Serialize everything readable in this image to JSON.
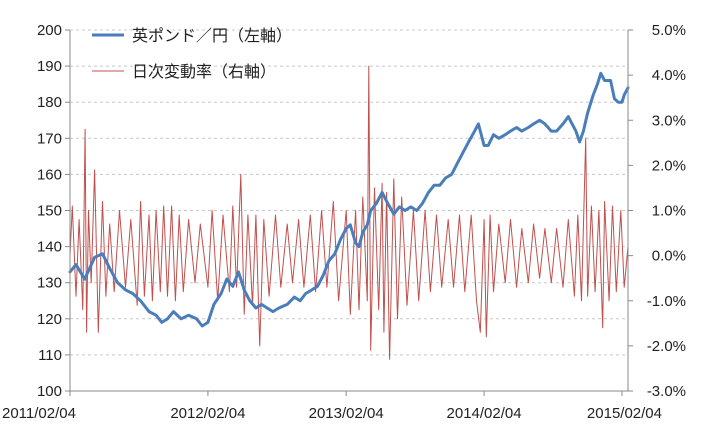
{
  "chart_data": {
    "type": "line",
    "title": "",
    "xlabel": "",
    "ylabel": "",
    "x_tick_labels": [
      "2011/02/04",
      "2012/02/04",
      "2013/02/04",
      "2014/02/04",
      "2015/02/04"
    ],
    "x_range": [
      "2011/02/04",
      "2015/02/20"
    ],
    "y_left": {
      "ylim": [
        100,
        200
      ],
      "tick_labels": [
        "100",
        "110",
        "120",
        "130",
        "140",
        "150",
        "160",
        "170",
        "180",
        "190",
        "200"
      ]
    },
    "y_right": {
      "ylim": [
        -3.0,
        5.0
      ],
      "unit": "%",
      "tick_labels": [
        "-3.0%",
        "-2.0%",
        "-1.0%",
        "0.0%",
        "1.0%",
        "2.0%",
        "3.0%",
        "4.0%",
        "5.0%"
      ]
    },
    "grid": true,
    "legend_position": "top-left",
    "series": [
      {
        "name": "英ポンド／円（左軸）",
        "axis": "left",
        "color": "#4a7ebb",
        "style": "line-thick",
        "points": [
          [
            "2011/02/04",
            133
          ],
          [
            "2011/02/20",
            135
          ],
          [
            "2011/03/15",
            131
          ],
          [
            "2011/04/10",
            137
          ],
          [
            "2011/05/01",
            138
          ],
          [
            "2011/05/20",
            134
          ],
          [
            "2011/06/10",
            130
          ],
          [
            "2011/07/01",
            128
          ],
          [
            "2011/07/20",
            127
          ],
          [
            "2011/08/10",
            125
          ],
          [
            "2011/09/01",
            122
          ],
          [
            "2011/09/20",
            121
          ],
          [
            "2011/10/05",
            119
          ],
          [
            "2011/10/20",
            120
          ],
          [
            "2011/11/05",
            122
          ],
          [
            "2011/11/25",
            120
          ],
          [
            "2011/12/15",
            121
          ],
          [
            "2012/01/05",
            120
          ],
          [
            "2012/01/20",
            118
          ],
          [
            "2012/02/04",
            119
          ],
          [
            "2012/02/20",
            124
          ],
          [
            "2012/03/10",
            127
          ],
          [
            "2012/03/25",
            131
          ],
          [
            "2012/04/10",
            129
          ],
          [
            "2012/04/25",
            133
          ],
          [
            "2012/05/10",
            128
          ],
          [
            "2012/05/25",
            125
          ],
          [
            "2012/06/10",
            123
          ],
          [
            "2012/06/25",
            124
          ],
          [
            "2012/07/10",
            123
          ],
          [
            "2012/07/25",
            122
          ],
          [
            "2012/08/10",
            123
          ],
          [
            "2012/09/01",
            124
          ],
          [
            "2012/09/20",
            126
          ],
          [
            "2012/10/05",
            125
          ],
          [
            "2012/10/20",
            127
          ],
          [
            "2012/11/05",
            128
          ],
          [
            "2012/11/20",
            129
          ],
          [
            "2012/12/05",
            132
          ],
          [
            "2012/12/20",
            136
          ],
          [
            "2013/01/05",
            138
          ],
          [
            "2013/01/20",
            142
          ],
          [
            "2013/02/04",
            145
          ],
          [
            "2013/02/15",
            146
          ],
          [
            "2013/03/01",
            141
          ],
          [
            "2013/03/10",
            140
          ],
          [
            "2013/03/20",
            144
          ],
          [
            "2013/04/01",
            146
          ],
          [
            "2013/04/10",
            150
          ],
          [
            "2013/04/25",
            152
          ],
          [
            "2013/05/10",
            155
          ],
          [
            "2013/05/25",
            152
          ],
          [
            "2013/06/10",
            149
          ],
          [
            "2013/06/25",
            151
          ],
          [
            "2013/07/10",
            150
          ],
          [
            "2013/07/25",
            151
          ],
          [
            "2013/08/10",
            150
          ],
          [
            "2013/08/25",
            152
          ],
          [
            "2013/09/10",
            155
          ],
          [
            "2013/09/25",
            157
          ],
          [
            "2013/10/10",
            157
          ],
          [
            "2013/10/25",
            159
          ],
          [
            "2013/11/10",
            160
          ],
          [
            "2013/11/25",
            163
          ],
          [
            "2013/12/10",
            166
          ],
          [
            "2013/12/25",
            169
          ],
          [
            "2014/01/10",
            172
          ],
          [
            "2014/01/20",
            174
          ],
          [
            "2014/02/04",
            168
          ],
          [
            "2014/02/15",
            168
          ],
          [
            "2014/03/01",
            171
          ],
          [
            "2014/03/15",
            170
          ],
          [
            "2014/04/01",
            171
          ],
          [
            "2014/04/15",
            172
          ],
          [
            "2014/05/01",
            173
          ],
          [
            "2014/05/15",
            172
          ],
          [
            "2014/06/01",
            173
          ],
          [
            "2014/06/15",
            174
          ],
          [
            "2014/07/01",
            175
          ],
          [
            "2014/07/15",
            174
          ],
          [
            "2014/08/01",
            172
          ],
          [
            "2014/08/15",
            172
          ],
          [
            "2014/09/01",
            174
          ],
          [
            "2014/09/15",
            176
          ],
          [
            "2014/09/25",
            174
          ],
          [
            "2014/10/05",
            172
          ],
          [
            "2014/10/15",
            169
          ],
          [
            "2014/10/25",
            172
          ],
          [
            "2014/11/05",
            177
          ],
          [
            "2014/11/20",
            182
          ],
          [
            "2014/12/01",
            185
          ],
          [
            "2014/12/10",
            188
          ],
          [
            "2014/12/20",
            186
          ],
          [
            "2015/01/05",
            186
          ],
          [
            "2015/01/15",
            181
          ],
          [
            "2015/01/25",
            180
          ],
          [
            "2015/02/04",
            180
          ],
          [
            "2015/02/10",
            182
          ],
          [
            "2015/02/20",
            184
          ]
        ]
      },
      {
        "name": "日次変動率（右軸）",
        "axis": "right",
        "color": "#c0504d",
        "style": "line-thin",
        "points": [
          [
            "2011/02/04",
            0.0
          ],
          [
            "2011/02/10",
            1.1
          ],
          [
            "2011/02/20",
            -0.9
          ],
          [
            "2011/02/28",
            0.8
          ],
          [
            "2011/03/10",
            -1.2
          ],
          [
            "2011/03/16",
            2.8
          ],
          [
            "2011/03/20",
            -1.7
          ],
          [
            "2011/03/25",
            1.0
          ],
          [
            "2011/04/01",
            -0.6
          ],
          [
            "2011/04/10",
            1.9
          ],
          [
            "2011/04/20",
            -1.7
          ],
          [
            "2011/05/01",
            1.2
          ],
          [
            "2011/05/10",
            -0.9
          ],
          [
            "2011/05/20",
            0.7
          ],
          [
            "2011/06/01",
            -0.8
          ],
          [
            "2011/06/15",
            1.0
          ],
          [
            "2011/07/01",
            -0.7
          ],
          [
            "2011/07/15",
            0.8
          ],
          [
            "2011/08/01",
            -1.1
          ],
          [
            "2011/08/10",
            1.2
          ],
          [
            "2011/08/20",
            -0.9
          ],
          [
            "2011/09/01",
            0.9
          ],
          [
            "2011/09/10",
            -1.0
          ],
          [
            "2011/09/20",
            1.0
          ],
          [
            "2011/10/01",
            -0.8
          ],
          [
            "2011/10/10",
            1.1
          ],
          [
            "2011/10/20",
            -0.9
          ],
          [
            "2011/10/31",
            1.1
          ],
          [
            "2011/11/10",
            -1.0
          ],
          [
            "2011/11/20",
            0.9
          ],
          [
            "2011/12/01",
            -0.8
          ],
          [
            "2011/12/15",
            0.8
          ],
          [
            "2012/01/01",
            -0.6
          ],
          [
            "2012/01/15",
            0.7
          ],
          [
            "2012/02/04",
            -0.7
          ],
          [
            "2012/02/15",
            1.0
          ],
          [
            "2012/03/01",
            -1.0
          ],
          [
            "2012/03/15",
            0.9
          ],
          [
            "2012/04/01",
            -0.8
          ],
          [
            "2012/04/10",
            1.1
          ],
          [
            "2012/04/20",
            -0.7
          ],
          [
            "2012/05/01",
            1.8
          ],
          [
            "2012/05/10",
            -1.3
          ],
          [
            "2012/05/20",
            0.9
          ],
          [
            "2012/06/01",
            -1.1
          ],
          [
            "2012/06/10",
            0.9
          ],
          [
            "2012/06/20",
            -2.0
          ],
          [
            "2012/07/01",
            0.8
          ],
          [
            "2012/07/15",
            -0.9
          ],
          [
            "2012/08/01",
            0.9
          ],
          [
            "2012/08/15",
            -0.7
          ],
          [
            "2012/09/01",
            0.7
          ],
          [
            "2012/09/15",
            -0.6
          ],
          [
            "2012/10/01",
            0.8
          ],
          [
            "2012/10/15",
            -0.7
          ],
          [
            "2012/11/01",
            0.9
          ],
          [
            "2012/11/15",
            -0.8
          ],
          [
            "2012/12/01",
            1.0
          ],
          [
            "2012/12/15",
            -0.7
          ],
          [
            "2013/01/01",
            1.2
          ],
          [
            "2013/01/15",
            -1.0
          ],
          [
            "2013/02/04",
            1.0
          ],
          [
            "2013/02/15",
            -1.3
          ],
          [
            "2013/03/01",
            1.0
          ],
          [
            "2013/03/10",
            -1.2
          ],
          [
            "2013/03/20",
            1.3
          ],
          [
            "2013/04/01",
            -1.0
          ],
          [
            "2013/04/05",
            4.2
          ],
          [
            "2013/04/10",
            -2.1
          ],
          [
            "2013/04/20",
            1.5
          ],
          [
            "2013/05/01",
            -1.2
          ],
          [
            "2013/05/10",
            1.6
          ],
          [
            "2013/05/15",
            -1.7
          ],
          [
            "2013/05/22",
            1.4
          ],
          [
            "2013/05/30",
            -2.3
          ],
          [
            "2013/06/10",
            1.7
          ],
          [
            "2013/06/20",
            -1.4
          ],
          [
            "2013/07/01",
            1.3
          ],
          [
            "2013/07/15",
            -1.1
          ],
          [
            "2013/08/01",
            1.0
          ],
          [
            "2013/08/15",
            -1.0
          ],
          [
            "2013/09/01",
            1.0
          ],
          [
            "2013/09/15",
            -0.8
          ],
          [
            "2013/10/01",
            0.9
          ],
          [
            "2013/10/15",
            -0.7
          ],
          [
            "2013/11/01",
            0.8
          ],
          [
            "2013/11/15",
            -0.7
          ],
          [
            "2013/12/01",
            0.9
          ],
          [
            "2013/12/15",
            -0.8
          ],
          [
            "2014/01/01",
            0.9
          ],
          [
            "2014/01/15",
            -1.0
          ],
          [
            "2014/01/25",
            -1.7
          ],
          [
            "2014/02/04",
            0.8
          ],
          [
            "2014/02/10",
            -1.8
          ],
          [
            "2014/02/20",
            0.9
          ],
          [
            "2014/03/01",
            -0.8
          ],
          [
            "2014/03/15",
            0.7
          ],
          [
            "2014/04/01",
            -0.6
          ],
          [
            "2014/04/15",
            0.8
          ],
          [
            "2014/05/01",
            -0.7
          ],
          [
            "2014/05/15",
            0.6
          ],
          [
            "2014/06/01",
            -0.6
          ],
          [
            "2014/06/15",
            0.7
          ],
          [
            "2014/07/01",
            -0.5
          ],
          [
            "2014/07/15",
            0.6
          ],
          [
            "2014/08/01",
            -0.6
          ],
          [
            "2014/08/15",
            0.6
          ],
          [
            "2014/09/01",
            -0.7
          ],
          [
            "2014/09/15",
            0.8
          ],
          [
            "2014/10/01",
            -0.9
          ],
          [
            "2014/10/10",
            0.9
          ],
          [
            "2014/10/20",
            -1.0
          ],
          [
            "2014/10/31",
            2.6
          ],
          [
            "2014/11/05",
            -0.9
          ],
          [
            "2014/11/15",
            1.1
          ],
          [
            "2014/11/25",
            -0.8
          ],
          [
            "2014/12/05",
            1.0
          ],
          [
            "2014/12/15",
            -1.6
          ],
          [
            "2014/12/20",
            1.2
          ],
          [
            "2015/01/01",
            -1.0
          ],
          [
            "2015/01/10",
            1.1
          ],
          [
            "2015/01/20",
            -0.8
          ],
          [
            "2015/02/01",
            1.0
          ],
          [
            "2015/02/10",
            -0.7
          ],
          [
            "2015/02/20",
            0.2
          ]
        ]
      }
    ]
  }
}
